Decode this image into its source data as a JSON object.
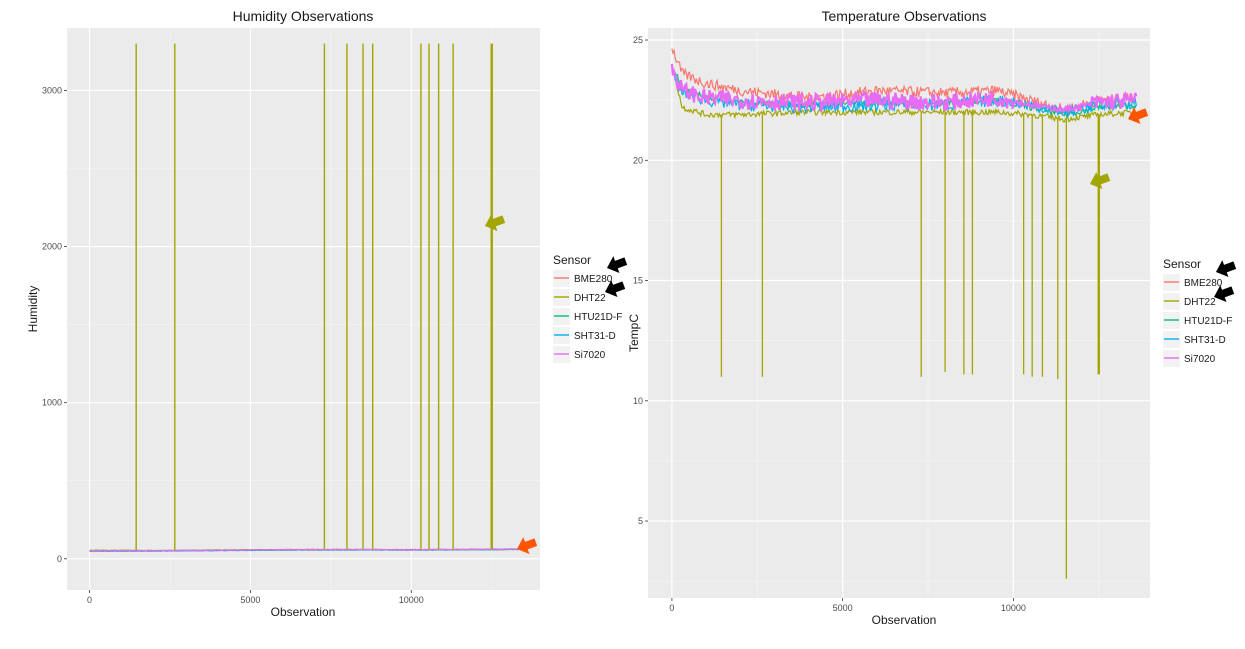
{
  "chart_data": [
    {
      "type": "line",
      "title": "Humidity Observations",
      "xlabel": "Observation",
      "ylabel": "Humidity",
      "xlim": [
        -700,
        14000
      ],
      "ylim": [
        -200,
        3400
      ],
      "x_ticks": [
        0,
        5000,
        10000
      ],
      "y_ticks": [
        0,
        1000,
        2000,
        3000
      ],
      "grid": true,
      "legend": {
        "title": "Sensor",
        "position": "right"
      },
      "series": [
        {
          "name": "BME280",
          "color": "#F8766D",
          "x": [
            0,
            2000,
            4000,
            6000,
            8000,
            10000,
            12000,
            13600
          ],
          "values": [
            48,
            50,
            53,
            56,
            57,
            56,
            58,
            60
          ]
        },
        {
          "name": "DHT22",
          "color": "#A3A500",
          "x": [
            0,
            2000,
            4000,
            6000,
            8000,
            10000,
            12000,
            13600
          ],
          "values": [
            55,
            53,
            56,
            59,
            60,
            58,
            61,
            63
          ],
          "spikes_x": [
            1450,
            2650,
            7300,
            8000,
            8500,
            8800,
            10300,
            10550,
            10850,
            11300,
            12500
          ],
          "spike_value": 3300
        },
        {
          "name": "HTU21D-F",
          "color": "#00BF7D",
          "x": [
            0,
            2000,
            4000,
            6000,
            8000,
            10000,
            12000,
            13600
          ],
          "values": [
            50,
            51,
            54,
            57,
            58,
            57,
            59,
            61
          ]
        },
        {
          "name": "SHT31-D",
          "color": "#00B0F6",
          "x": [
            0,
            2000,
            4000,
            6000,
            8000,
            10000,
            12000,
            13600
          ],
          "values": [
            49,
            50,
            53,
            56,
            57,
            56,
            58,
            60
          ]
        },
        {
          "name": "Si7020",
          "color": "#E76BF3",
          "x": [
            0,
            2000,
            4000,
            6000,
            8000,
            10000,
            12000,
            13600
          ],
          "values": [
            51,
            52,
            55,
            58,
            59,
            58,
            60,
            62
          ]
        }
      ],
      "annotations": [
        {
          "color": "#A3A500",
          "points_to": "DHT22 spikes"
        },
        {
          "color": "#FF5500",
          "points_to": "baseline"
        }
      ]
    },
    {
      "type": "line",
      "title": "Temperature Observations",
      "xlabel": "Observation",
      "ylabel": "TempC",
      "xlim": [
        -700,
        14000
      ],
      "ylim": [
        1.8,
        25.5
      ],
      "x_ticks": [
        0,
        5000,
        10000
      ],
      "y_ticks": [
        5,
        10,
        15,
        20,
        25
      ],
      "grid": true,
      "legend": {
        "title": "Sensor",
        "position": "right"
      },
      "series": [
        {
          "name": "BME280",
          "color": "#F8766D",
          "x": [
            0,
            300,
            1000,
            2000,
            4000,
            6000,
            8000,
            9500,
            10500,
            11500,
            12500,
            13600
          ],
          "values": [
            24.7,
            23.6,
            23.2,
            22.9,
            22.6,
            22.9,
            22.8,
            22.9,
            22.5,
            22.1,
            22.5,
            22.6
          ]
        },
        {
          "name": "DHT22",
          "color": "#A3A500",
          "x": [
            0,
            300,
            1000,
            2000,
            4000,
            6000,
            8000,
            9500,
            10500,
            11500,
            12500,
            13600
          ],
          "values": [
            24.0,
            22.2,
            21.9,
            21.9,
            22.0,
            22.0,
            22.0,
            22.0,
            21.9,
            21.7,
            21.9,
            22.0
          ],
          "drops": [
            [
              1450,
              11.0
            ],
            [
              2650,
              11.0
            ],
            [
              7300,
              11.0
            ],
            [
              8000,
              11.2
            ],
            [
              8550,
              11.1
            ],
            [
              8800,
              11.1
            ],
            [
              10300,
              11.1
            ],
            [
              10550,
              11.0
            ],
            [
              10850,
              11.0
            ],
            [
              11300,
              10.9
            ],
            [
              11550,
              2.6
            ],
            [
              12500,
              11.1
            ]
          ]
        },
        {
          "name": "HTU21D-F",
          "color": "#00BF7D",
          "x": [
            0,
            300,
            1000,
            2000,
            4000,
            6000,
            8000,
            9500,
            10500,
            11500,
            12500,
            13600
          ],
          "values": [
            24.0,
            23.0,
            22.6,
            22.4,
            22.3,
            22.4,
            22.4,
            22.5,
            22.2,
            21.9,
            22.2,
            22.3
          ]
        },
        {
          "name": "SHT31-D",
          "color": "#00B0F6",
          "x": [
            0,
            300,
            1000,
            2000,
            4000,
            6000,
            8000,
            9500,
            10500,
            11500,
            12500,
            13600
          ],
          "values": [
            23.6,
            22.8,
            22.5,
            22.3,
            22.2,
            22.3,
            22.3,
            22.5,
            22.3,
            22.0,
            22.3,
            22.4
          ]
        },
        {
          "name": "Si7020",
          "color": "#E76BF3",
          "x": [
            0,
            300,
            1000,
            2000,
            4000,
            6000,
            8000,
            9500,
            10500,
            11500,
            12500,
            13600
          ],
          "values": [
            23.8,
            22.9,
            22.6,
            22.5,
            22.4,
            22.5,
            22.4,
            22.6,
            22.3,
            22.1,
            22.4,
            22.5
          ]
        }
      ],
      "annotations": [
        {
          "color": "#A3A500",
          "points_to": "DHT22 drops"
        },
        {
          "color": "#FF5500",
          "points_to": "cluster"
        }
      ]
    }
  ]
}
